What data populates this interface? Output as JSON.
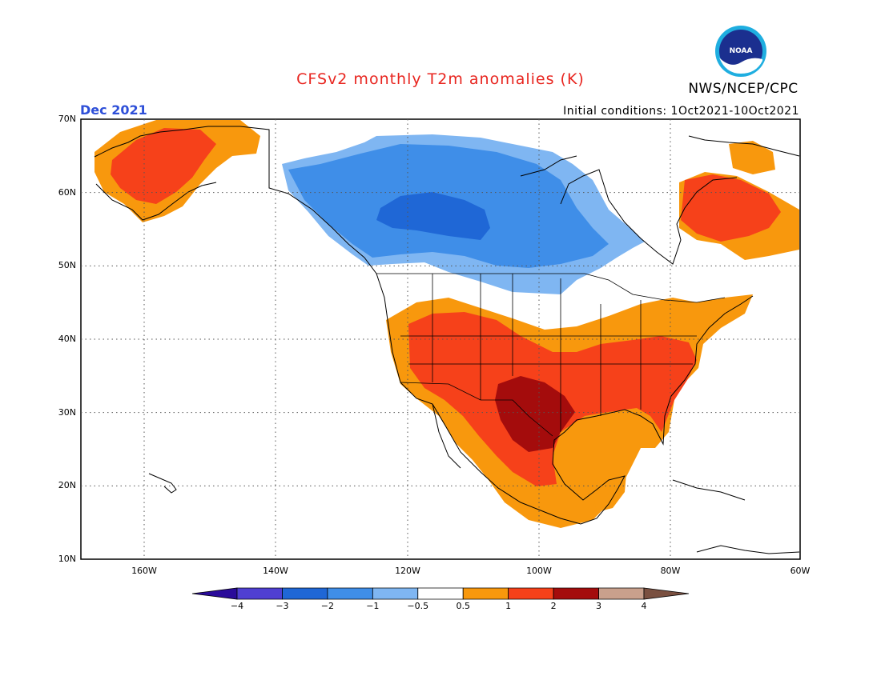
{
  "header": {
    "title": "CFSv2 monthly T2m anomalies (K)",
    "agency": "NWS/NCEP/CPC",
    "logo_text": "NOAA",
    "period": "Dec 2021",
    "initial_conditions": "Initial conditions: 1Oct2021-10Oct2021"
  },
  "map": {
    "region": "North America",
    "lat_labels": [
      "70N",
      "60N",
      "50N",
      "40N",
      "30N",
      "20N",
      "10N"
    ],
    "lon_labels": [
      "160W",
      "140W",
      "120W",
      "100W",
      "80W",
      "60W"
    ],
    "grid_style": "dotted",
    "ocean_color": "#ffffff",
    "coastline_color": "#000000"
  },
  "colorbar": {
    "tick_labels": [
      "-4",
      "-3",
      "-2",
      "-1",
      "-0.5",
      "0.5",
      "1",
      "2",
      "3",
      "4"
    ],
    "bins": [
      {
        "label": "< -4",
        "color": "#2a0b9a"
      },
      {
        "label": "-4 to -3",
        "color": "#4f3fd2"
      },
      {
        "label": "-3 to -2",
        "color": "#1f67d6"
      },
      {
        "label": "-2 to -1",
        "color": "#3f8ee8"
      },
      {
        "label": "-1 to -0.5",
        "color": "#7fb6f2"
      },
      {
        "label": "-0.5 to 0.5",
        "color": "#ffffff"
      },
      {
        "label": "0.5 to 1",
        "color": "#f8980d"
      },
      {
        "label": "1 to 2",
        "color": "#f6411a"
      },
      {
        "label": "2 to 3",
        "color": "#a40c0c"
      },
      {
        "label": "3 to 4",
        "color": "#c9a08c"
      },
      {
        "label": "> 4",
        "color": "#7a5040"
      }
    ]
  }
}
